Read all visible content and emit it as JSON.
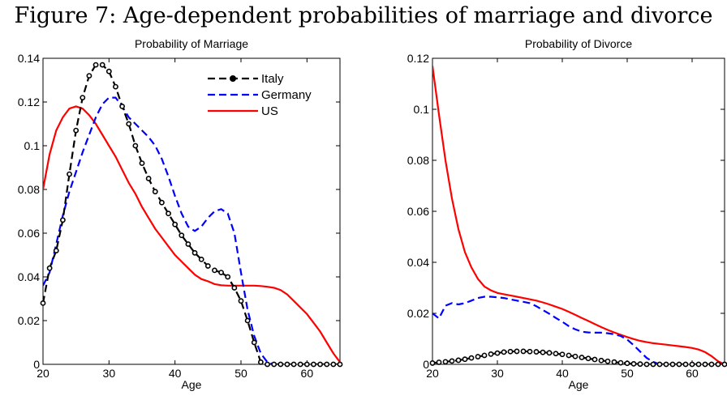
{
  "figure_title": "Figure 7: Age-dependent probabilities of marriage and divorce",
  "chart_data": [
    {
      "type": "line",
      "title": "Probability of Marriage",
      "xlabel": "Age",
      "ylabel": "",
      "xlim": [
        20,
        65
      ],
      "ylim": [
        0,
        0.14
      ],
      "xticks": [
        20,
        30,
        40,
        50,
        60
      ],
      "yticks": [
        0,
        0.02,
        0.04,
        0.06,
        0.08,
        0.1,
        0.12,
        0.14
      ],
      "legend": {
        "position": "top-right",
        "entries": [
          "Italy",
          "Germany",
          "US"
        ]
      },
      "series": [
        {
          "name": "Italy",
          "color": "#000000",
          "style": "dashed-markers",
          "x": [
            20,
            21,
            22,
            23,
            24,
            25,
            26,
            27,
            28,
            29,
            30,
            31,
            32,
            33,
            34,
            35,
            36,
            37,
            38,
            39,
            40,
            41,
            42,
            43,
            44,
            45,
            46,
            47,
            48,
            49,
            50,
            51,
            52,
            53,
            54,
            55,
            56,
            57,
            58,
            59,
            60,
            61,
            62,
            63,
            64,
            65
          ],
          "y": [
            0.028,
            0.044,
            0.052,
            0.066,
            0.087,
            0.107,
            0.122,
            0.132,
            0.137,
            0.137,
            0.134,
            0.127,
            0.118,
            0.11,
            0.1,
            0.092,
            0.085,
            0.079,
            0.074,
            0.069,
            0.064,
            0.059,
            0.055,
            0.051,
            0.048,
            0.045,
            0.043,
            0.042,
            0.04,
            0.035,
            0.029,
            0.02,
            0.01,
            0.001,
            0,
            0,
            0,
            0,
            0,
            0,
            0,
            0,
            0,
            0,
            0,
            0
          ]
        },
        {
          "name": "Germany",
          "color": "#0000ff",
          "style": "dashed",
          "x": [
            20,
            21,
            22,
            23,
            24,
            25,
            26,
            27,
            28,
            29,
            30,
            31,
            32,
            33,
            34,
            35,
            36,
            37,
            38,
            39,
            40,
            41,
            42,
            43,
            44,
            45,
            46,
            47,
            48,
            49,
            50,
            51,
            52,
            53,
            54,
            55
          ],
          "y": [
            0.036,
            0.042,
            0.055,
            0.068,
            0.079,
            0.088,
            0.097,
            0.105,
            0.113,
            0.119,
            0.122,
            0.122,
            0.118,
            0.113,
            0.11,
            0.107,
            0.104,
            0.1,
            0.094,
            0.086,
            0.077,
            0.069,
            0.063,
            0.061,
            0.063,
            0.067,
            0.07,
            0.071,
            0.069,
            0.06,
            0.042,
            0.025,
            0.013,
            0.005,
            0.001,
            0
          ]
        },
        {
          "name": "US",
          "color": "#ff0000",
          "style": "solid",
          "x": [
            20,
            21,
            22,
            23,
            24,
            25,
            26,
            27,
            28,
            29,
            30,
            31,
            32,
            33,
            34,
            35,
            36,
            37,
            38,
            39,
            40,
            41,
            42,
            43,
            44,
            45,
            46,
            47,
            48,
            49,
            50,
            51,
            52,
            53,
            54,
            55,
            56,
            57,
            58,
            59,
            60,
            61,
            62,
            63,
            64,
            65
          ],
          "y": [
            0.08,
            0.096,
            0.107,
            0.113,
            0.117,
            0.118,
            0.117,
            0.114,
            0.11,
            0.105,
            0.1,
            0.095,
            0.089,
            0.083,
            0.078,
            0.072,
            0.067,
            0.062,
            0.058,
            0.054,
            0.05,
            0.047,
            0.044,
            0.041,
            0.039,
            0.038,
            0.0367,
            0.0362,
            0.036,
            0.036,
            0.036,
            0.036,
            0.036,
            0.0358,
            0.0355,
            0.035,
            0.034,
            0.032,
            0.029,
            0.026,
            0.023,
            0.019,
            0.015,
            0.01,
            0.005,
            0.001
          ]
        }
      ]
    },
    {
      "type": "line",
      "title": "Probability of Divorce",
      "xlabel": "Age",
      "ylabel": "",
      "xlim": [
        20,
        65
      ],
      "ylim": [
        0,
        0.12
      ],
      "xticks": [
        20,
        30,
        40,
        50,
        60
      ],
      "yticks": [
        0,
        0.02,
        0.04,
        0.06,
        0.08,
        0.1,
        0.12
      ],
      "series": [
        {
          "name": "Italy",
          "color": "#000000",
          "style": "dashed-markers",
          "x": [
            20,
            21,
            22,
            23,
            24,
            25,
            26,
            27,
            28,
            29,
            30,
            31,
            32,
            33,
            34,
            35,
            36,
            37,
            38,
            39,
            40,
            41,
            42,
            43,
            44,
            45,
            46,
            47,
            48,
            49,
            50,
            51,
            52,
            53,
            54,
            55,
            56,
            57,
            58,
            59,
            60,
            61,
            62,
            63,
            64,
            65
          ],
          "y": [
            0.0005,
            0.0008,
            0.001,
            0.0013,
            0.0016,
            0.002,
            0.0025,
            0.003,
            0.0035,
            0.004,
            0.0044,
            0.0048,
            0.005,
            0.0051,
            0.0051,
            0.005,
            0.0049,
            0.0047,
            0.0045,
            0.0042,
            0.0039,
            0.0035,
            0.0031,
            0.0027,
            0.0023,
            0.0019,
            0.0015,
            0.0012,
            0.0009,
            0.0006,
            0.0004,
            0.0002,
            0.0001,
            0,
            0,
            0,
            0,
            0,
            0,
            0,
            0,
            0,
            0,
            0,
            0,
            0
          ]
        },
        {
          "name": "Germany",
          "color": "#0000ff",
          "style": "dashed",
          "x": [
            20,
            21,
            22,
            23,
            24,
            25,
            26,
            27,
            28,
            29,
            30,
            31,
            32,
            33,
            34,
            35,
            36,
            37,
            38,
            39,
            40,
            41,
            42,
            43,
            44,
            45,
            46,
            47,
            48,
            49,
            50,
            51,
            52,
            53,
            54,
            55
          ],
          "y": [
            0.02,
            0.018,
            0.023,
            0.024,
            0.0235,
            0.024,
            0.025,
            0.026,
            0.0265,
            0.0265,
            0.0263,
            0.026,
            0.0255,
            0.025,
            0.0245,
            0.024,
            0.0228,
            0.0213,
            0.0198,
            0.0182,
            0.0167,
            0.015,
            0.0137,
            0.0128,
            0.0125,
            0.0124,
            0.0124,
            0.0122,
            0.0118,
            0.0111,
            0.0097,
            0.0075,
            0.005,
            0.0025,
            0.001,
            0
          ]
        },
        {
          "name": "US",
          "color": "#ff0000",
          "style": "solid",
          "x": [
            20,
            21,
            22,
            23,
            24,
            25,
            26,
            27,
            28,
            29,
            30,
            31,
            32,
            33,
            34,
            35,
            36,
            37,
            38,
            39,
            40,
            41,
            42,
            43,
            44,
            45,
            46,
            47,
            48,
            49,
            50,
            51,
            52,
            53,
            54,
            55,
            56,
            57,
            58,
            59,
            60,
            61,
            62,
            63,
            64,
            65
          ],
          "y": [
            0.117,
            0.098,
            0.08,
            0.065,
            0.053,
            0.044,
            0.038,
            0.0335,
            0.0305,
            0.029,
            0.028,
            0.0275,
            0.027,
            0.0265,
            0.026,
            0.0255,
            0.025,
            0.0243,
            0.0235,
            0.0226,
            0.0217,
            0.0206,
            0.0194,
            0.0182,
            0.017,
            0.0158,
            0.0146,
            0.0135,
            0.0125,
            0.0116,
            0.0107,
            0.0099,
            0.0092,
            0.0087,
            0.0083,
            0.008,
            0.0077,
            0.0074,
            0.0071,
            0.0068,
            0.0064,
            0.0058,
            0.0048,
            0.0032,
            0.0012,
            0
          ]
        }
      ]
    }
  ]
}
